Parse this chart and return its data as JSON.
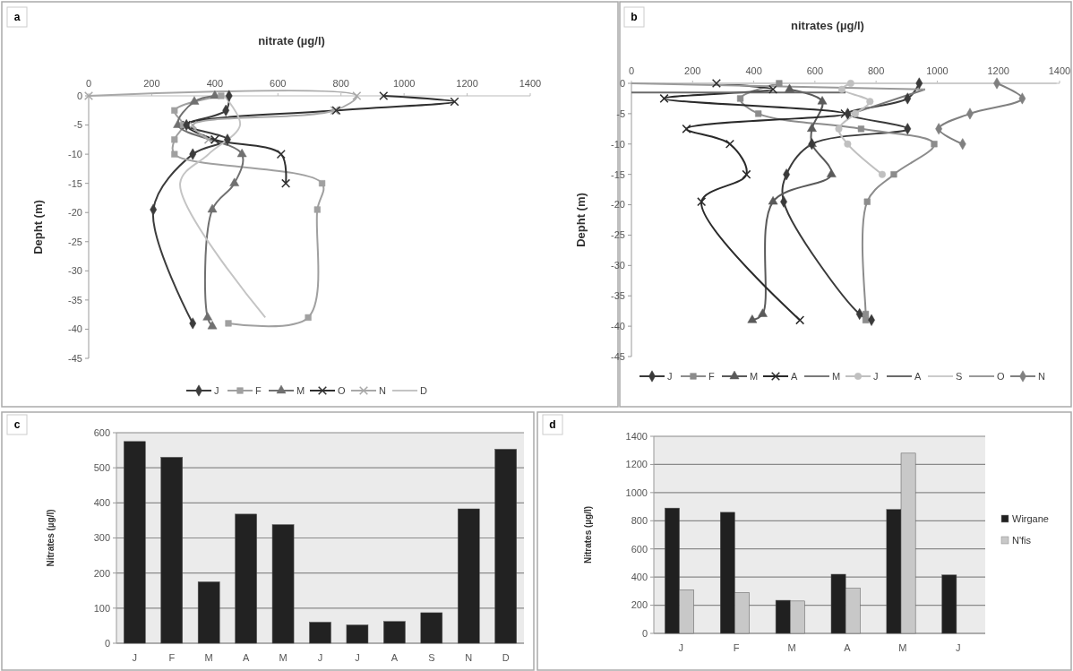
{
  "chart_data": [
    {
      "type": "line",
      "title": "nitrate (µg/l)",
      "ylabel": "Depht  (m)",
      "annotations": [
        "a"
      ],
      "xlim": [
        0,
        1400
      ],
      "xticks": [
        0,
        200,
        400,
        600,
        800,
        1000,
        1200,
        1400
      ],
      "ylim": [
        -45,
        0
      ],
      "yticks": [
        0,
        -5,
        -10,
        -15,
        -20,
        -25,
        -30,
        -35,
        -40,
        -45
      ],
      "grid": false,
      "legend": "bottom",
      "series": [
        {
          "name": "J",
          "color": "#3c3c3c",
          "marker": "diamond",
          "x": [
            445,
            435,
            310,
            440,
            330,
            205,
            330
          ],
          "values": [
            0,
            -2.5,
            -5,
            -7.5,
            -10,
            -19.5,
            -39
          ]
        },
        {
          "name": "F",
          "color": "#a0a0a0",
          "marker": "square",
          "x": [
            420,
            272,
            300,
            272,
            272,
            740,
            725,
            696,
            443
          ],
          "values": [
            0,
            -2.5,
            -5,
            -7.5,
            -10,
            -15,
            -19.5,
            -38,
            -39
          ]
        },
        {
          "name": "M",
          "color": "#707070",
          "marker": "triangle",
          "x": [
            400,
            335,
            283,
            486,
            462,
            392,
            377,
            392
          ],
          "values": [
            0,
            -1,
            -5,
            -10,
            -15,
            -19.5,
            -38,
            -39.5
          ]
        },
        {
          "name": "O",
          "color": "#303030",
          "marker": "cross",
          "x": [
            935,
            1160,
            785,
            310,
            400,
            610,
            625
          ],
          "values": [
            0,
            -1,
            -2.5,
            -5,
            -7.5,
            -10,
            -15
          ]
        },
        {
          "name": "N",
          "color": "#a8a8a8",
          "marker": "cross",
          "x": [
            0,
            850,
            780,
            330,
            380
          ],
          "values": [
            0,
            0,
            -2.5,
            -5,
            -7.5
          ]
        },
        {
          "name": "D",
          "color": "#c4c4c4",
          "marker": "none",
          "x": [
            430,
            480,
            380,
            290,
            560
          ],
          "values": [
            0,
            -5,
            -10,
            -15,
            -38
          ]
        }
      ]
    },
    {
      "type": "line",
      "title": "nitrates (µg/l)",
      "ylabel": "Depht  (m)",
      "annotations": [
        "b"
      ],
      "xlim": [
        0,
        1400
      ],
      "xticks": [
        0,
        200,
        400,
        600,
        800,
        1000,
        1200,
        1400
      ],
      "ylim": [
        -45,
        0
      ],
      "yticks": [
        0,
        -5,
        -10,
        -15,
        -20,
        -25,
        -30,
        -35,
        -40,
        -45
      ],
      "grid": false,
      "legend": "bottom",
      "series": [
        {
          "name": "J",
          "color": "#3a3a3a",
          "marker": "diamond",
          "x": [
            941,
            903,
            707,
            903,
            590,
            507,
            498,
            746,
            785
          ],
          "values": [
            0,
            -2.5,
            -5,
            -7.5,
            -10,
            -15,
            -19.5,
            -38,
            -39
          ]
        },
        {
          "name": "F",
          "color": "#8c8c8c",
          "marker": "square",
          "x": [
            483,
            356,
            415,
            751,
            990,
            858,
            771,
            766,
            766
          ],
          "values": [
            0,
            -2.5,
            -5,
            -7.5,
            -10,
            -15,
            -19.5,
            -38,
            -39
          ]
        },
        {
          "name": "M",
          "color": "#5a5a5a",
          "marker": "triangle",
          "x": [
            517,
            624,
            590,
            590,
            654,
            463,
            429,
            395
          ],
          "values": [
            -1,
            -3,
            -7.5,
            -10,
            -15,
            -19.5,
            -38,
            -39
          ]
        },
        {
          "name": "A",
          "color": "#2a2a2a",
          "marker": "cross",
          "x": [
            278,
            463,
            107,
            698,
            180,
            322,
            376,
            229,
            551
          ],
          "values": [
            0,
            -1,
            -2.5,
            -5,
            -7.5,
            -10,
            -15,
            -19.5,
            -39
          ]
        },
        {
          "name": "M",
          "color": "#7a7a7a",
          "marker": "none",
          "x": [
            720,
            960
          ],
          "values": [
            -5,
            -1
          ]
        },
        {
          "name": "J",
          "color": "#c0c0c0",
          "marker": "circle",
          "x": [
            717,
            688,
            780,
            732,
            678,
            707,
            820
          ],
          "values": [
            0,
            -1,
            -3,
            -5,
            -7.5,
            -10,
            -15
          ]
        },
        {
          "name": "A",
          "color": "#6a6a6a",
          "marker": "none",
          "x": [
            0,
            700
          ],
          "values": [
            -1.5,
            -1.5
          ]
        },
        {
          "name": "S",
          "color": "#cccccc",
          "marker": "none",
          "x": [
            0,
            1390
          ],
          "values": [
            0,
            0
          ]
        },
        {
          "name": "O",
          "color": "#9a9a9a",
          "marker": "none",
          "x": [
            0,
            960
          ],
          "values": [
            0,
            -1
          ]
        },
        {
          "name": "N",
          "color": "#808080",
          "marker": "diamond",
          "x": [
            1195,
            1278,
            1107,
            1005,
            1083
          ],
          "values": [
            0,
            -2.5,
            -5,
            -7.5,
            -10
          ]
        }
      ]
    },
    {
      "type": "bar",
      "ylabel": "Nitrates (µg/l)",
      "annotations": [
        "c"
      ],
      "categories": [
        "J",
        "F",
        "M",
        "A",
        "M",
        "J",
        "J",
        "A",
        "S",
        "N",
        "D"
      ],
      "ylim": [
        0,
        600
      ],
      "yticks": [
        0,
        100,
        200,
        300,
        400,
        500,
        600
      ],
      "grid": "y",
      "legend": false,
      "series": [
        {
          "color": "#222222",
          "values": [
            575,
            530,
            175,
            368,
            338,
            60,
            52,
            62,
            87,
            383,
            553
          ]
        }
      ]
    },
    {
      "type": "bar",
      "ylabel": "Nitrates (µg/l)",
      "annotations": [
        "d"
      ],
      "categories": [
        "J",
        "F",
        "M",
        "A",
        "M",
        "J"
      ],
      "ylim": [
        0,
        1400
      ],
      "yticks": [
        0,
        200,
        400,
        600,
        800,
        1000,
        1200,
        1400
      ],
      "grid": "y",
      "legend": "right",
      "series": [
        {
          "name": "Wirgane",
          "color": "#202020",
          "values": [
            890,
            860,
            235,
            420,
            880,
            415
          ]
        },
        {
          "name": "N'fis",
          "color": "#c8c8c8",
          "values": [
            310,
            290,
            230,
            320,
            1280,
            null
          ]
        }
      ]
    }
  ]
}
